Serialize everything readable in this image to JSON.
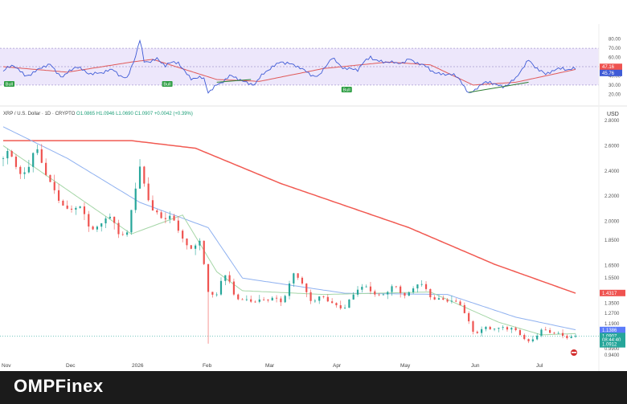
{
  "legend": {
    "symbol": "XRP / U.S. Dollar · 1D · CRYPTO",
    "open": "O1.0865",
    "high": "H1.0946",
    "low": "L1.0690",
    "close": "C1.0907",
    "change": "+0.0042 (+0.39%)"
  },
  "currency_label": "USD",
  "brand": "OMPFinex",
  "colors": {
    "up": "#26a69a",
    "down": "#ef5350",
    "ma_long": "#f15a52",
    "ma_mid": "#8fb1f0",
    "ma_short": "#a5d6a7",
    "rsi": "#3f5bd6",
    "rsi_ma": "#e05a5a"
  },
  "rsi": {
    "ticks": [
      "80.00",
      "70.00",
      "60.00",
      "50.00",
      "40.00",
      "30.00",
      "20.00"
    ],
    "tags": [
      {
        "label": "47.16",
        "value": 47.16,
        "color": "#ef5350"
      },
      {
        "label": "45.76",
        "value": 45.76,
        "color": "#3f5bd6"
      }
    ],
    "badges": [
      {
        "label": "Bull",
        "index": 0
      },
      {
        "label": "Bull",
        "index": 74
      },
      {
        "label": "Bull",
        "index": 158
      }
    ]
  },
  "price_axis": {
    "ticks": [
      "2.8000",
      "2.6000",
      "2.4000",
      "2.2000",
      "2.0000",
      "1.8500",
      "1.6500",
      "1.5500",
      "1.3500",
      "1.2700",
      "1.1900",
      "1.0900",
      "0.9900",
      "0.9400"
    ],
    "tags": [
      {
        "label": "1.4317",
        "value": 1.4317,
        "color": "#ef5350"
      },
      {
        "label": "1.1386",
        "value": 1.1386,
        "color": "#5c7cfa"
      },
      {
        "label": "1.0907",
        "value": 1.0907,
        "color": "#26a69a"
      },
      {
        "label": "08:44:40",
        "value": 1.06,
        "color": "#26a69a"
      },
      {
        "label": "1.0912",
        "value": 1.025,
        "color": "#26a69a"
      }
    ]
  },
  "time_axis": {
    "labels": [
      "Nov",
      "Dec",
      "2026",
      "Feb",
      "Mar",
      "Apr",
      "May",
      "Jun",
      "Jul"
    ]
  },
  "chart_data": {
    "type": "candlestick",
    "symbol": "XRP / U.S. Dollar",
    "interval": "1D",
    "x_labels": [
      "Nov",
      "Dec",
      "2026",
      "Feb",
      "Mar",
      "Apr",
      "May",
      "Jun",
      "Jul"
    ],
    "ylim": [
      0.94,
      2.8
    ],
    "price_path": [
      [
        0,
        2.5
      ],
      [
        8,
        2.4
      ],
      [
        15,
        2.55
      ],
      [
        22,
        2.3
      ],
      [
        30,
        2.1
      ],
      [
        38,
        2.05
      ],
      [
        45,
        1.95
      ],
      [
        52,
        2.0
      ],
      [
        58,
        1.9
      ],
      [
        64,
        2.4
      ],
      [
        70,
        2.1
      ],
      [
        78,
        2.0
      ],
      [
        86,
        1.85
      ],
      [
        92,
        1.78
      ],
      [
        96,
        1.45
      ],
      [
        100,
        1.45
      ],
      [
        103,
        1.6
      ],
      [
        108,
        1.4
      ],
      [
        116,
        1.38
      ],
      [
        124,
        1.36
      ],
      [
        130,
        1.4
      ],
      [
        136,
        1.55
      ],
      [
        144,
        1.42
      ],
      [
        152,
        1.35
      ],
      [
        160,
        1.33
      ],
      [
        166,
        1.46
      ],
      [
        174,
        1.45
      ],
      [
        180,
        1.43
      ],
      [
        186,
        1.45
      ],
      [
        194,
        1.48
      ],
      [
        200,
        1.42
      ],
      [
        208,
        1.37
      ],
      [
        214,
        1.33
      ],
      [
        220,
        1.15
      ],
      [
        228,
        1.12
      ],
      [
        234,
        1.2
      ],
      [
        240,
        1.1
      ],
      [
        246,
        1.06
      ],
      [
        252,
        1.13
      ],
      [
        260,
        1.1
      ],
      [
        266,
        1.1
      ],
      [
        268,
        1.09
      ]
    ],
    "ma_long": [
      [
        0,
        2.64
      ],
      [
        60,
        2.64
      ],
      [
        90,
        2.58
      ],
      [
        130,
        2.3
      ],
      [
        190,
        1.95
      ],
      [
        230,
        1.66
      ],
      [
        268,
        1.43
      ]
    ],
    "ma_mid": [
      [
        0,
        2.75
      ],
      [
        30,
        2.5
      ],
      [
        64,
        2.15
      ],
      [
        96,
        1.95
      ],
      [
        112,
        1.55
      ],
      [
        160,
        1.43
      ],
      [
        208,
        1.42
      ],
      [
        240,
        1.24
      ],
      [
        268,
        1.14
      ]
    ],
    "ma_short": [
      [
        0,
        2.6
      ],
      [
        30,
        2.25
      ],
      [
        60,
        1.9
      ],
      [
        84,
        2.05
      ],
      [
        100,
        1.6
      ],
      [
        112,
        1.45
      ],
      [
        150,
        1.42
      ],
      [
        200,
        1.44
      ],
      [
        232,
        1.2
      ],
      [
        252,
        1.1
      ],
      [
        268,
        1.11
      ]
    ],
    "rsi_path": [
      [
        0,
        45
      ],
      [
        5,
        50
      ],
      [
        10,
        42
      ],
      [
        16,
        45
      ],
      [
        22,
        52
      ],
      [
        28,
        40
      ],
      [
        34,
        48
      ],
      [
        40,
        45
      ],
      [
        46,
        42
      ],
      [
        52,
        46
      ],
      [
        58,
        38
      ],
      [
        62,
        60
      ],
      [
        64,
        77
      ],
      [
        66,
        55
      ],
      [
        72,
        60
      ],
      [
        76,
        50
      ],
      [
        82,
        55
      ],
      [
        88,
        38
      ],
      [
        94,
        35
      ],
      [
        96,
        22
      ],
      [
        100,
        32
      ],
      [
        106,
        38
      ],
      [
        112,
        35
      ],
      [
        118,
        32
      ],
      [
        124,
        45
      ],
      [
        130,
        58
      ],
      [
        136,
        50
      ],
      [
        142,
        45
      ],
      [
        148,
        40
      ],
      [
        154,
        58
      ],
      [
        160,
        50
      ],
      [
        166,
        45
      ],
      [
        172,
        62
      ],
      [
        178,
        55
      ],
      [
        184,
        52
      ],
      [
        190,
        60
      ],
      [
        196,
        50
      ],
      [
        202,
        45
      ],
      [
        208,
        42
      ],
      [
        214,
        35
      ],
      [
        218,
        22
      ],
      [
        222,
        28
      ],
      [
        228,
        32
      ],
      [
        234,
        30
      ],
      [
        240,
        35
      ],
      [
        246,
        58
      ],
      [
        250,
        50
      ],
      [
        254,
        40
      ],
      [
        258,
        45
      ],
      [
        262,
        50
      ],
      [
        266,
        48
      ],
      [
        268,
        47
      ]
    ],
    "rsi_ma_path": [
      [
        0,
        50
      ],
      [
        30,
        44
      ],
      [
        60,
        55
      ],
      [
        70,
        58
      ],
      [
        100,
        36
      ],
      [
        120,
        34
      ],
      [
        150,
        48
      ],
      [
        180,
        55
      ],
      [
        200,
        52
      ],
      [
        220,
        30
      ],
      [
        240,
        33
      ],
      [
        268,
        47
      ]
    ]
  }
}
